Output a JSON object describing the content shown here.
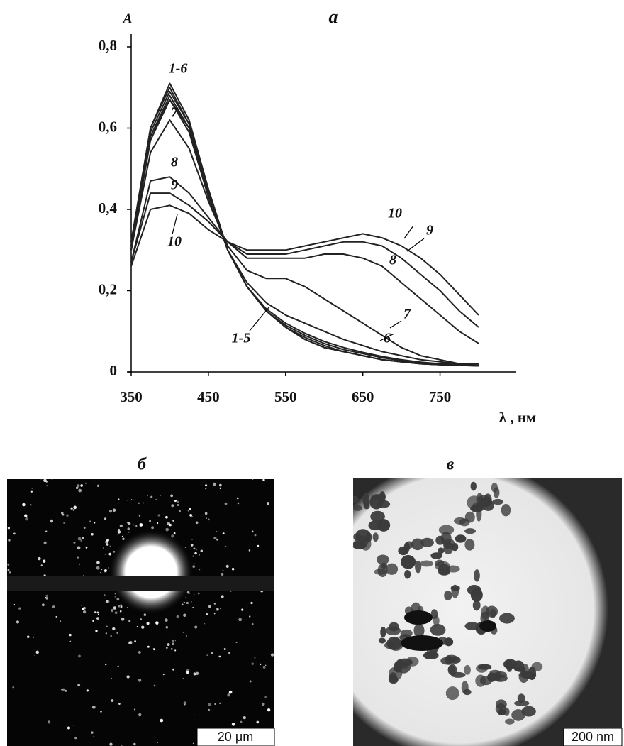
{
  "chart_data": {
    "type": "line",
    "title": "а",
    "y_label": "A",
    "x_label": "λ , нм",
    "x": [
      350,
      375,
      400,
      425,
      450,
      475,
      500,
      525,
      550,
      575,
      600,
      625,
      650,
      675,
      700,
      725,
      750,
      775,
      800
    ],
    "xlim": [
      350,
      800
    ],
    "xticks": [
      350,
      450,
      550,
      650,
      750
    ],
    "ylim": [
      0,
      0.8
    ],
    "yticks": [
      0,
      {
        "value": 0.2,
        "label": "0,2"
      },
      {
        "value": 0.4,
        "label": "0,4"
      },
      {
        "value": 0.6,
        "label": "0,6"
      },
      {
        "value": 0.8,
        "label": "0,8"
      }
    ],
    "series": [
      {
        "color": "#222",
        "values": [
          0.32,
          0.6,
          0.71,
          0.62,
          0.45,
          0.3,
          0.21,
          0.15,
          0.11,
          0.08,
          0.06,
          0.05,
          0.04,
          0.03,
          0.025,
          0.02,
          0.018,
          0.016,
          0.015
        ]
      },
      {
        "color": "#222",
        "values": [
          0.32,
          0.6,
          0.7,
          0.61,
          0.45,
          0.3,
          0.21,
          0.15,
          0.11,
          0.08,
          0.06,
          0.05,
          0.04,
          0.03,
          0.025,
          0.02,
          0.018,
          0.016,
          0.015
        ]
      },
      {
        "color": "#222",
        "values": [
          0.31,
          0.59,
          0.69,
          0.61,
          0.44,
          0.3,
          0.21,
          0.15,
          0.11,
          0.085,
          0.065,
          0.05,
          0.04,
          0.03,
          0.025,
          0.02,
          0.018,
          0.016,
          0.015
        ]
      },
      {
        "color": "#222",
        "values": [
          0.31,
          0.58,
          0.68,
          0.6,
          0.44,
          0.3,
          0.21,
          0.15,
          0.115,
          0.09,
          0.07,
          0.055,
          0.045,
          0.035,
          0.028,
          0.022,
          0.019,
          0.017,
          0.016
        ]
      },
      {
        "color": "#222",
        "values": [
          0.3,
          0.58,
          0.67,
          0.6,
          0.44,
          0.3,
          0.21,
          0.155,
          0.12,
          0.095,
          0.075,
          0.06,
          0.048,
          0.038,
          0.03,
          0.024,
          0.02,
          0.018,
          0.016
        ]
      },
      {
        "color": "#222",
        "values": [
          0.3,
          0.57,
          0.67,
          0.59,
          0.43,
          0.3,
          0.22,
          0.17,
          0.14,
          0.12,
          0.1,
          0.08,
          0.065,
          0.05,
          0.04,
          0.03,
          0.025,
          0.02,
          0.02
        ]
      },
      {
        "color": "#222",
        "values": [
          0.3,
          0.54,
          0.62,
          0.55,
          0.42,
          0.31,
          0.25,
          0.23,
          0.23,
          0.21,
          0.18,
          0.15,
          0.12,
          0.09,
          0.06,
          0.04,
          0.03,
          0.02,
          0.02
        ]
      },
      {
        "color": "#222",
        "values": [
          0.27,
          0.47,
          0.48,
          0.44,
          0.38,
          0.32,
          0.28,
          0.28,
          0.28,
          0.28,
          0.29,
          0.29,
          0.28,
          0.26,
          0.22,
          0.18,
          0.14,
          0.1,
          0.07
        ]
      },
      {
        "color": "#222",
        "values": [
          0.27,
          0.44,
          0.44,
          0.41,
          0.37,
          0.32,
          0.29,
          0.29,
          0.29,
          0.3,
          0.31,
          0.32,
          0.32,
          0.31,
          0.28,
          0.24,
          0.2,
          0.15,
          0.11
        ]
      },
      {
        "color": "#222",
        "values": [
          0.26,
          0.4,
          0.41,
          0.39,
          0.35,
          0.32,
          0.3,
          0.3,
          0.3,
          0.31,
          0.32,
          0.33,
          0.34,
          0.33,
          0.31,
          0.28,
          0.24,
          0.19,
          0.14
        ]
      }
    ],
    "annotations": [
      "1-6",
      "7",
      "8",
      "9",
      "10",
      "10",
      "9",
      "8",
      "7",
      "6",
      "1-5"
    ]
  },
  "panels": {
    "diffraction": {
      "label": "б",
      "scale_bar": "20 μm"
    },
    "micrograph": {
      "label": "в",
      "scale_bar": "200 nm"
    }
  }
}
